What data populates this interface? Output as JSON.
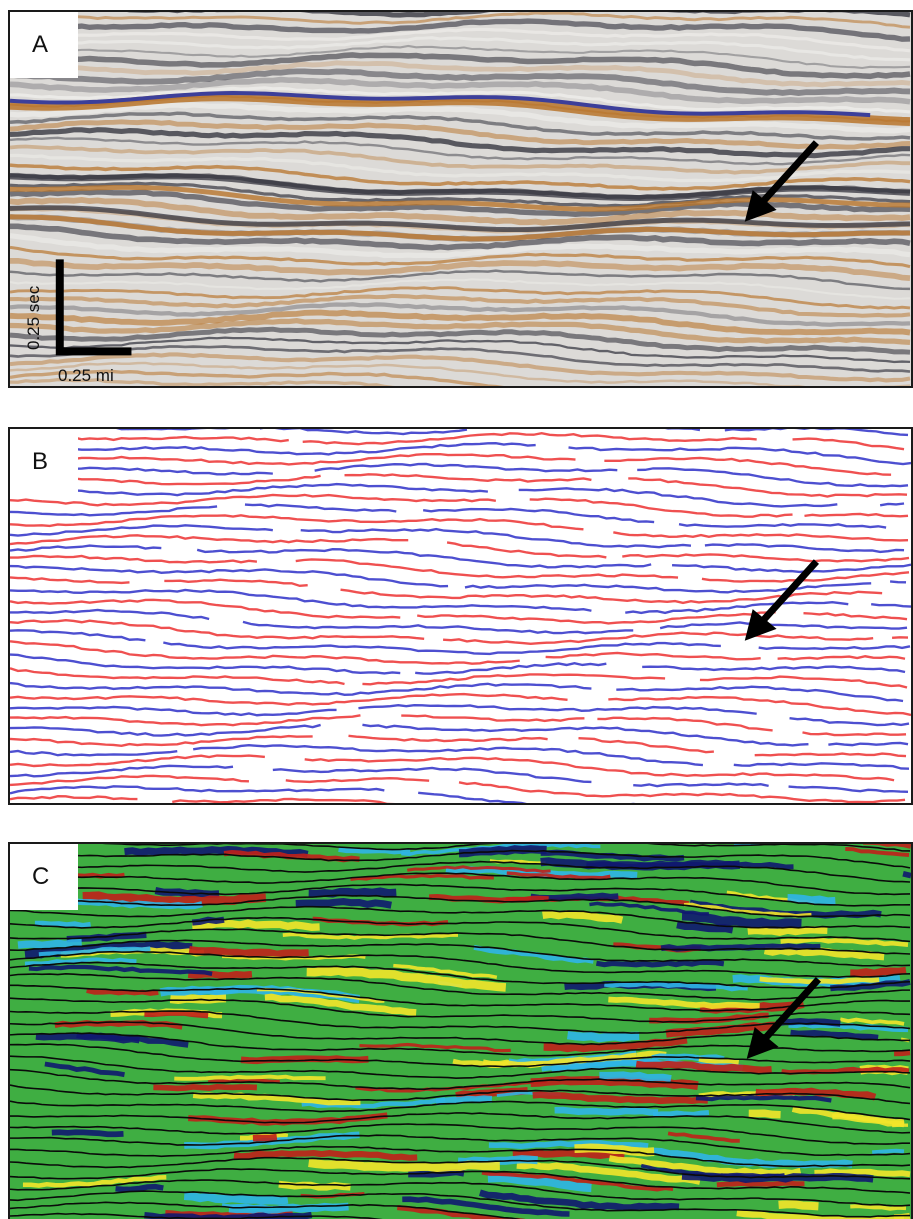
{
  "panels": [
    {
      "label": "A",
      "style": "seismic-amplitude",
      "colors": {
        "background": "#dcdad7",
        "positive": "#b8742c",
        "negative": "#3c3f9a",
        "trough": "#2a2a35"
      }
    },
    {
      "label": "B",
      "style": "peak-trough-lines",
      "colors": {
        "background": "#ffffff",
        "peak": "#ef5050",
        "trough": "#4d4fd0"
      }
    },
    {
      "label": "C",
      "style": "attribute-with-horizons",
      "colors": {
        "background": "#3fae42",
        "high": "#f3e52a",
        "highest": "#c0201a",
        "low": "#2fb5e8",
        "lowest": "#101870",
        "horizon": "#0a0a0a"
      }
    }
  ],
  "scale_bar": {
    "vertical_label": "0.25 sec",
    "horizontal_label": "0.25 mi"
  },
  "annotation": {
    "icon": "arrow-icon",
    "color": "#000000"
  }
}
